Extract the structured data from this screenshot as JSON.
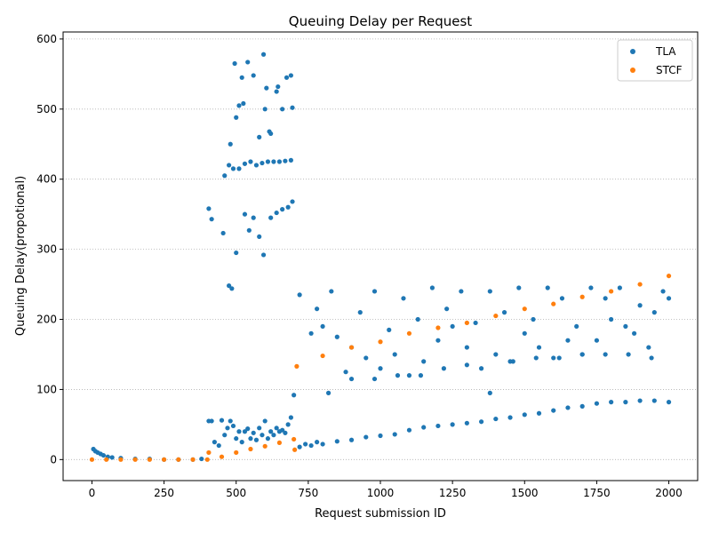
{
  "chart_data": {
    "type": "scatter",
    "title": "Queuing Delay per Request",
    "xlabel": "Request submission ID",
    "ylabel": "Queuing Delay(propotional)",
    "xlim": [
      -100,
      2100
    ],
    "ylim": [
      -30,
      610
    ],
    "xticks": [
      0,
      250,
      500,
      750,
      1000,
      1250,
      1500,
      1750,
      2000
    ],
    "yticks": [
      0,
      100,
      200,
      300,
      400,
      500,
      600
    ],
    "grid": "horizontal dotted",
    "legend_position": "top-right",
    "colors": {
      "TLA": "#1f77b4",
      "STCF": "#ff7f0e"
    },
    "series": [
      {
        "name": "TLA",
        "points": [
          [
            5,
            15
          ],
          [
            12,
            12
          ],
          [
            20,
            10
          ],
          [
            30,
            8
          ],
          [
            40,
            6
          ],
          [
            55,
            4
          ],
          [
            70,
            3
          ],
          [
            100,
            2
          ],
          [
            150,
            1
          ],
          [
            200,
            1
          ],
          [
            250,
            0
          ],
          [
            300,
            0
          ],
          [
            350,
            0
          ],
          [
            380,
            1
          ],
          [
            405,
            55
          ],
          [
            415,
            55
          ],
          [
            425,
            25
          ],
          [
            440,
            20
          ],
          [
            450,
            56
          ],
          [
            460,
            35
          ],
          [
            470,
            45
          ],
          [
            480,
            55
          ],
          [
            490,
            48
          ],
          [
            500,
            30
          ],
          [
            510,
            40
          ],
          [
            520,
            25
          ],
          [
            530,
            40
          ],
          [
            540,
            44
          ],
          [
            550,
            30
          ],
          [
            560,
            38
          ],
          [
            570,
            28
          ],
          [
            580,
            45
          ],
          [
            590,
            35
          ],
          [
            600,
            55
          ],
          [
            610,
            30
          ],
          [
            620,
            40
          ],
          [
            630,
            35
          ],
          [
            640,
            45
          ],
          [
            650,
            40
          ],
          [
            660,
            42
          ],
          [
            670,
            38
          ],
          [
            680,
            50
          ],
          [
            690,
            60
          ],
          [
            405,
            358
          ],
          [
            415,
            343
          ],
          [
            455,
            323
          ],
          [
            475,
            248
          ],
          [
            485,
            244
          ],
          [
            500,
            295
          ],
          [
            530,
            350
          ],
          [
            545,
            327
          ],
          [
            560,
            345
          ],
          [
            580,
            318
          ],
          [
            595,
            292
          ],
          [
            620,
            345
          ],
          [
            640,
            352
          ],
          [
            660,
            357
          ],
          [
            680,
            360
          ],
          [
            695,
            368
          ],
          [
            460,
            405
          ],
          [
            475,
            420
          ],
          [
            490,
            415
          ],
          [
            510,
            415
          ],
          [
            530,
            422
          ],
          [
            550,
            425
          ],
          [
            570,
            420
          ],
          [
            590,
            423
          ],
          [
            610,
            425
          ],
          [
            630,
            425
          ],
          [
            650,
            425
          ],
          [
            670,
            426
          ],
          [
            690,
            427
          ],
          [
            495,
            565
          ],
          [
            510,
            505
          ],
          [
            520,
            545
          ],
          [
            540,
            567
          ],
          [
            560,
            548
          ],
          [
            580,
            460
          ],
          [
            595,
            578
          ],
          [
            605,
            530
          ],
          [
            620,
            465
          ],
          [
            640,
            525
          ],
          [
            660,
            500
          ],
          [
            675,
            545
          ],
          [
            690,
            548
          ],
          [
            695,
            502
          ],
          [
            480,
            450
          ],
          [
            500,
            488
          ],
          [
            525,
            508
          ],
          [
            600,
            500
          ],
          [
            615,
            468
          ],
          [
            645,
            532
          ],
          [
            700,
            92
          ],
          [
            720,
            18
          ],
          [
            740,
            22
          ],
          [
            760,
            20
          ],
          [
            780,
            25
          ],
          [
            800,
            22
          ],
          [
            850,
            26
          ],
          [
            900,
            28
          ],
          [
            950,
            32
          ],
          [
            1000,
            34
          ],
          [
            1050,
            36
          ],
          [
            1100,
            42
          ],
          [
            1150,
            46
          ],
          [
            1200,
            48
          ],
          [
            1250,
            50
          ],
          [
            1300,
            52
          ],
          [
            1350,
            54
          ],
          [
            1400,
            58
          ],
          [
            1450,
            60
          ],
          [
            1500,
            64
          ],
          [
            1550,
            66
          ],
          [
            1600,
            70
          ],
          [
            1650,
            74
          ],
          [
            1700,
            76
          ],
          [
            1750,
            80
          ],
          [
            1800,
            82
          ],
          [
            1850,
            82
          ],
          [
            1900,
            84
          ],
          [
            1950,
            84
          ],
          [
            2000,
            82
          ],
          [
            720,
            235
          ],
          [
            760,
            180
          ],
          [
            800,
            190
          ],
          [
            850,
            175
          ],
          [
            900,
            160
          ],
          [
            950,
            145
          ],
          [
            1000,
            130
          ],
          [
            1050,
            150
          ],
          [
            1100,
            120
          ],
          [
            1150,
            140
          ],
          [
            1200,
            170
          ],
          [
            1250,
            190
          ],
          [
            1300,
            160
          ],
          [
            1350,
            130
          ],
          [
            1400,
            150
          ],
          [
            1450,
            140
          ],
          [
            1500,
            180
          ],
          [
            1550,
            160
          ],
          [
            1600,
            145
          ],
          [
            1650,
            170
          ],
          [
            1700,
            150
          ],
          [
            1750,
            170
          ],
          [
            1800,
            200
          ],
          [
            1850,
            190
          ],
          [
            1900,
            220
          ],
          [
            1950,
            210
          ],
          [
            2000,
            230
          ],
          [
            780,
            215
          ],
          [
            830,
            240
          ],
          [
            880,
            125
          ],
          [
            930,
            210
          ],
          [
            980,
            240
          ],
          [
            1030,
            185
          ],
          [
            1080,
            230
          ],
          [
            1130,
            200
          ],
          [
            1180,
            245
          ],
          [
            1230,
            215
          ],
          [
            1280,
            240
          ],
          [
            1330,
            195
          ],
          [
            1380,
            240
          ],
          [
            1430,
            210
          ],
          [
            1480,
            245
          ],
          [
            1530,
            200
          ],
          [
            1580,
            245
          ],
          [
            1630,
            230
          ],
          [
            1680,
            190
          ],
          [
            1730,
            245
          ],
          [
            1780,
            230
          ],
          [
            1830,
            245
          ],
          [
            1880,
            180
          ],
          [
            1930,
            160
          ],
          [
            1980,
            240
          ],
          [
            820,
            95
          ],
          [
            900,
            115
          ],
          [
            980,
            115
          ],
          [
            1060,
            120
          ],
          [
            1140,
            120
          ],
          [
            1220,
            130
          ],
          [
            1300,
            135
          ],
          [
            1380,
            95
          ],
          [
            1460,
            140
          ],
          [
            1540,
            145
          ],
          [
            1620,
            145
          ],
          [
            1700,
            150
          ],
          [
            1780,
            150
          ],
          [
            1860,
            150
          ],
          [
            1940,
            145
          ]
        ]
      },
      {
        "name": "STCF",
        "points": [
          [
            0,
            0
          ],
          [
            50,
            0
          ],
          [
            100,
            0
          ],
          [
            150,
            0
          ],
          [
            200,
            0
          ],
          [
            250,
            0
          ],
          [
            300,
            0
          ],
          [
            350,
            0
          ],
          [
            400,
            0
          ],
          [
            405,
            10
          ],
          [
            450,
            4
          ],
          [
            500,
            10
          ],
          [
            550,
            15
          ],
          [
            600,
            19
          ],
          [
            650,
            24
          ],
          [
            700,
            29
          ],
          [
            703,
            14
          ],
          [
            710,
            133
          ],
          [
            800,
            148
          ],
          [
            900,
            160
          ],
          [
            1000,
            168
          ],
          [
            1100,
            180
          ],
          [
            1200,
            188
          ],
          [
            1300,
            195
          ],
          [
            1400,
            205
          ],
          [
            1500,
            215
          ],
          [
            1600,
            222
          ],
          [
            1700,
            232
          ],
          [
            1800,
            240
          ],
          [
            1900,
            250
          ],
          [
            2000,
            262
          ]
        ]
      }
    ]
  }
}
